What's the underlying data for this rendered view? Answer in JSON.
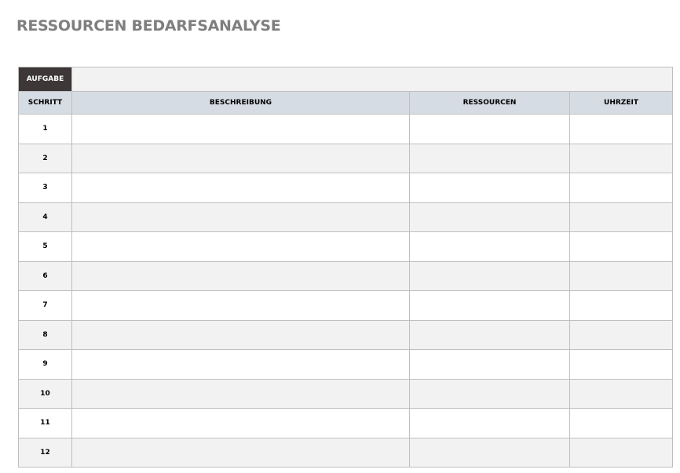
{
  "title": "RESSOURCEN BEDARFSANALYSE",
  "task_label": "AUFGABE",
  "task_value": "",
  "headers": [
    "SCHRITT",
    "BESCHREIBUNG",
    "RESSOURCEN",
    "UHRZEIT"
  ],
  "rows": [
    {
      "step": "1"
    },
    {
      "step": "2"
    },
    {
      "step": "3"
    },
    {
      "step": "4"
    },
    {
      "step": "5"
    },
    {
      "step": "6"
    },
    {
      "step": "7"
    },
    {
      "step": "8"
    },
    {
      "step": "9"
    },
    {
      "step": "10"
    },
    {
      "step": "11"
    },
    {
      "step": "12"
    }
  ]
}
